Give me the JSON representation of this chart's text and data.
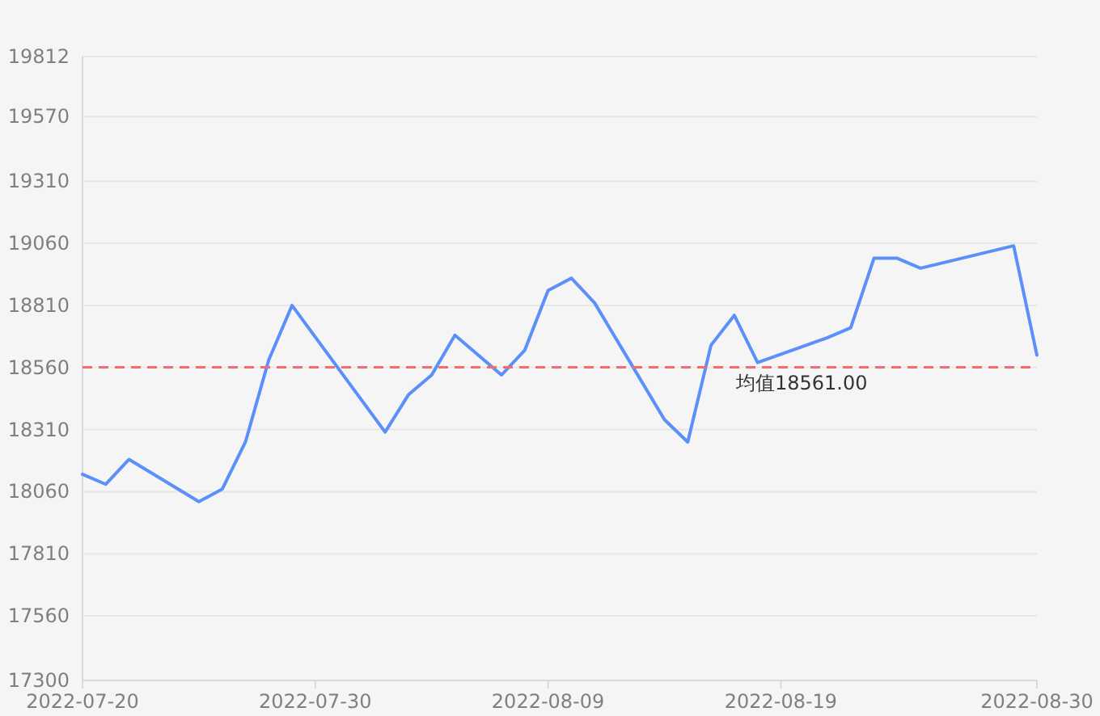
{
  "chart_data": {
    "type": "line",
    "x": [
      "2022-07-20",
      "2022-07-21",
      "2022-07-22",
      "2022-07-25",
      "2022-07-26",
      "2022-07-27",
      "2022-07-28",
      "2022-07-29",
      "2022-08-02",
      "2022-08-03",
      "2022-08-04",
      "2022-08-05",
      "2022-08-07",
      "2022-08-08",
      "2022-08-09",
      "2022-08-10",
      "2022-08-11",
      "2022-08-14",
      "2022-08-15",
      "2022-08-16",
      "2022-08-17",
      "2022-08-18",
      "2022-08-21",
      "2022-08-22",
      "2022-08-23",
      "2022-08-24",
      "2022-08-25",
      "2022-08-29",
      "2022-08-30"
    ],
    "series": [
      {
        "color": "#5b8ff9",
        "values": [
          18130,
          18090,
          18190,
          18020,
          18070,
          18260,
          18590,
          18810,
          18300,
          18450,
          18530,
          18690,
          18530,
          18630,
          18870,
          18920,
          18820,
          18350,
          18260,
          18650,
          18770,
          18580,
          18680,
          18720,
          19000,
          19000,
          18960,
          19050,
          18610
        ]
      }
    ],
    "xlim": [
      "2022-07-20",
      "2022-08-30"
    ],
    "xticks": [
      "2022-07-20",
      "2022-07-30",
      "2022-08-09",
      "2022-08-19",
      "2022-08-30"
    ],
    "ylim": [
      17300,
      19812
    ],
    "yticks": [
      17300,
      17560,
      17810,
      18060,
      18310,
      18560,
      18810,
      19060,
      19310,
      19570,
      19812
    ],
    "ref_lines": [
      {
        "axis": "y",
        "value": 18561,
        "label": "均值18561.00",
        "color": "#f56c6c",
        "line_style": "dashed"
      }
    ],
    "grid": "y",
    "marker": "none",
    "line_style": "solid"
  }
}
